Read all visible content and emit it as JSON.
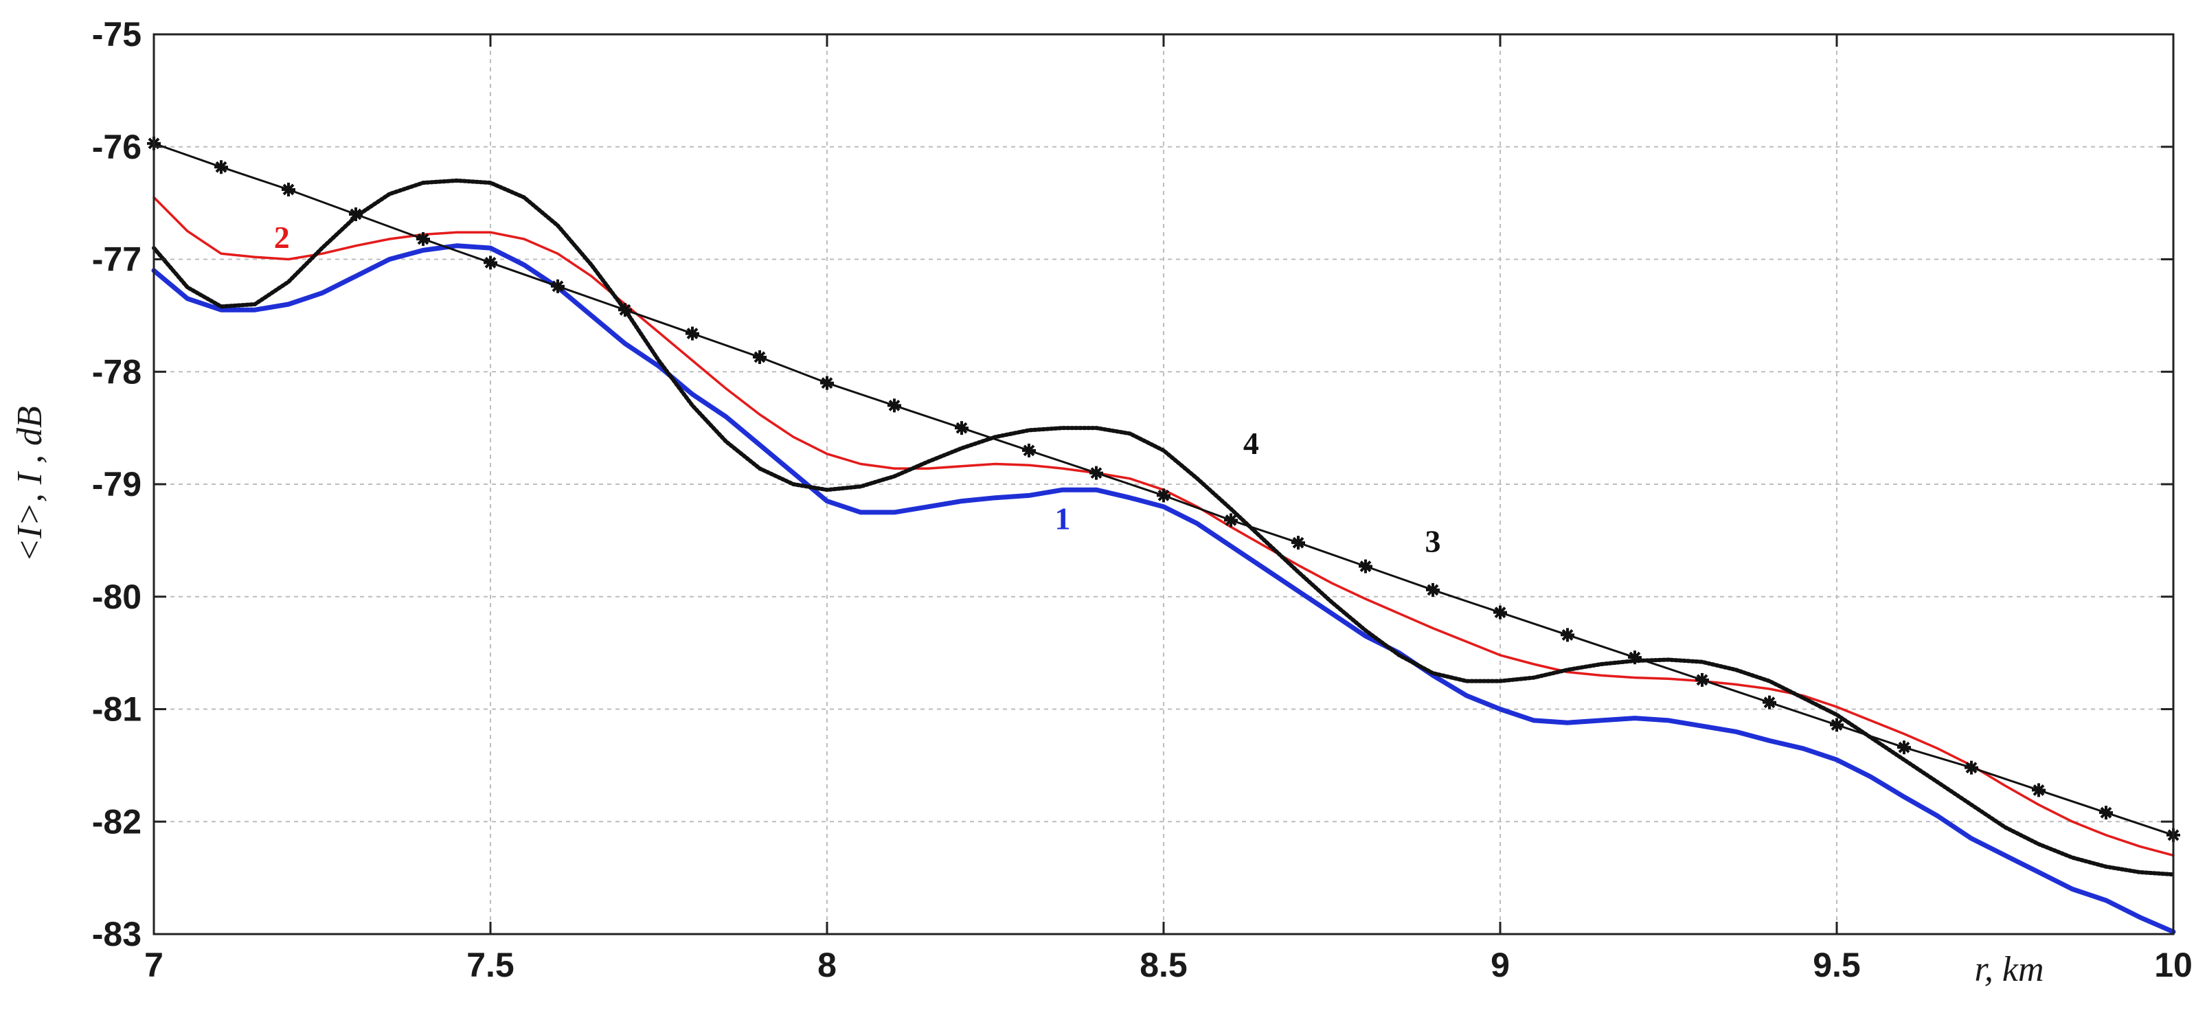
{
  "chart_data": {
    "type": "line",
    "xlabel": "r, km",
    "ylabel": "<I>, I , dB",
    "xlim": [
      7,
      10
    ],
    "ylim": [
      -83,
      -75
    ],
    "x_ticks": [
      "7",
      "7.5",
      "8",
      "8.5",
      "9",
      "9.5",
      "10"
    ],
    "y_ticks": [
      "-75",
      "-76",
      "-77",
      "-78",
      "-79",
      "-80",
      "-81",
      "-82",
      "-83"
    ],
    "grid": true,
    "colors": {
      "curve1": "#1f2fd6",
      "curve2": "#e41b1b",
      "curve3": "#111111",
      "curve4": "#111111"
    },
    "series": [
      {
        "name": "1",
        "x": [
          7.0,
          7.05,
          7.1,
          7.15,
          7.2,
          7.25,
          7.3,
          7.35,
          7.4,
          7.45,
          7.5,
          7.55,
          7.6,
          7.65,
          7.7,
          7.75,
          7.8,
          7.85,
          7.9,
          7.95,
          8.0,
          8.05,
          8.1,
          8.15,
          8.2,
          8.25,
          8.3,
          8.35,
          8.4,
          8.45,
          8.5,
          8.55,
          8.6,
          8.65,
          8.7,
          8.75,
          8.8,
          8.85,
          8.9,
          8.95,
          9.0,
          9.05,
          9.1,
          9.15,
          9.2,
          9.25,
          9.3,
          9.35,
          9.4,
          9.45,
          9.5,
          9.55,
          9.6,
          9.65,
          9.7,
          9.75,
          9.8,
          9.85,
          9.9,
          9.95,
          10.0
        ],
        "y": [
          -77.1,
          -77.35,
          -77.45,
          -77.45,
          -77.4,
          -77.3,
          -77.15,
          -77.0,
          -76.92,
          -76.88,
          -76.9,
          -77.05,
          -77.25,
          -77.5,
          -77.75,
          -77.95,
          -78.2,
          -78.4,
          -78.65,
          -78.9,
          -79.15,
          -79.25,
          -79.25,
          -79.2,
          -79.15,
          -79.12,
          -79.1,
          -79.05,
          -79.05,
          -79.12,
          -79.2,
          -79.35,
          -79.55,
          -79.75,
          -79.95,
          -80.15,
          -80.35,
          -80.5,
          -80.7,
          -80.88,
          -81.0,
          -81.1,
          -81.12,
          -81.1,
          -81.08,
          -81.1,
          -81.15,
          -81.2,
          -81.28,
          -81.35,
          -81.45,
          -81.6,
          -81.78,
          -81.95,
          -82.15,
          -82.3,
          -82.45,
          -82.6,
          -82.7,
          -82.85,
          -82.98
        ]
      },
      {
        "name": "2",
        "x": [
          7.0,
          7.05,
          7.1,
          7.15,
          7.2,
          7.25,
          7.3,
          7.35,
          7.4,
          7.45,
          7.5,
          7.55,
          7.6,
          7.65,
          7.7,
          7.75,
          7.8,
          7.85,
          7.9,
          7.95,
          8.0,
          8.05,
          8.1,
          8.15,
          8.2,
          8.25,
          8.3,
          8.35,
          8.4,
          8.45,
          8.5,
          8.55,
          8.6,
          8.65,
          8.7,
          8.75,
          8.8,
          8.85,
          8.9,
          8.95,
          9.0,
          9.05,
          9.1,
          9.15,
          9.2,
          9.25,
          9.3,
          9.35,
          9.4,
          9.45,
          9.5,
          9.55,
          9.6,
          9.65,
          9.7,
          9.75,
          9.8,
          9.85,
          9.9,
          9.95,
          10.0
        ],
        "y": [
          -76.45,
          -76.75,
          -76.95,
          -76.98,
          -77.0,
          -76.95,
          -76.88,
          -76.82,
          -76.78,
          -76.76,
          -76.76,
          -76.82,
          -76.95,
          -77.15,
          -77.4,
          -77.65,
          -77.9,
          -78.15,
          -78.38,
          -78.58,
          -78.73,
          -78.82,
          -78.86,
          -78.86,
          -78.84,
          -78.82,
          -78.83,
          -78.86,
          -78.9,
          -78.95,
          -79.05,
          -79.2,
          -79.38,
          -79.55,
          -79.72,
          -79.88,
          -80.02,
          -80.15,
          -80.28,
          -80.4,
          -80.52,
          -80.6,
          -80.67,
          -80.7,
          -80.72,
          -80.73,
          -80.75,
          -80.78,
          -80.82,
          -80.88,
          -80.98,
          -81.1,
          -81.22,
          -81.35,
          -81.5,
          -81.68,
          -81.85,
          -82.0,
          -82.12,
          -82.22,
          -82.3
        ]
      },
      {
        "name": "3",
        "x": [
          7.0,
          7.1,
          7.2,
          7.3,
          7.4,
          7.5,
          7.6,
          7.7,
          7.8,
          7.9,
          8.0,
          8.1,
          8.2,
          8.3,
          8.4,
          8.5,
          8.6,
          8.7,
          8.8,
          8.9,
          9.0,
          9.1,
          9.2,
          9.3,
          9.4,
          9.5,
          9.6,
          9.7,
          9.8,
          9.9,
          10.0
        ],
        "y": [
          -75.97,
          -76.18,
          -76.38,
          -76.6,
          -76.82,
          -77.03,
          -77.24,
          -77.45,
          -77.66,
          -77.87,
          -78.1,
          -78.3,
          -78.5,
          -78.7,
          -78.9,
          -79.1,
          -79.32,
          -79.52,
          -79.73,
          -79.94,
          -80.14,
          -80.34,
          -80.54,
          -80.74,
          -80.94,
          -81.14,
          -81.34,
          -81.52,
          -81.72,
          -81.92,
          -82.12
        ]
      },
      {
        "name": "4",
        "x": [
          7.0,
          7.05,
          7.1,
          7.15,
          7.2,
          7.25,
          7.3,
          7.35,
          7.4,
          7.45,
          7.5,
          7.55,
          7.6,
          7.65,
          7.7,
          7.75,
          7.8,
          7.85,
          7.9,
          7.95,
          8.0,
          8.05,
          8.1,
          8.15,
          8.2,
          8.25,
          8.3,
          8.35,
          8.4,
          8.45,
          8.5,
          8.55,
          8.6,
          8.65,
          8.7,
          8.75,
          8.8,
          8.85,
          8.9,
          8.95,
          9.0,
          9.05,
          9.1,
          9.15,
          9.2,
          9.25,
          9.3,
          9.35,
          9.4,
          9.45,
          9.5,
          9.55,
          9.6,
          9.65,
          9.7,
          9.75,
          9.8,
          9.85,
          9.9,
          9.95,
          10.0
        ],
        "y": [
          -76.9,
          -77.25,
          -77.42,
          -77.4,
          -77.2,
          -76.9,
          -76.62,
          -76.42,
          -76.32,
          -76.3,
          -76.32,
          -76.45,
          -76.7,
          -77.05,
          -77.45,
          -77.9,
          -78.3,
          -78.62,
          -78.86,
          -79.0,
          -79.05,
          -79.02,
          -78.93,
          -78.8,
          -78.68,
          -78.58,
          -78.52,
          -78.5,
          -78.5,
          -78.55,
          -78.7,
          -78.95,
          -79.22,
          -79.5,
          -79.78,
          -80.05,
          -80.3,
          -80.52,
          -80.68,
          -80.75,
          -80.75,
          -80.72,
          -80.65,
          -80.6,
          -80.57,
          -80.56,
          -80.58,
          -80.65,
          -80.75,
          -80.9,
          -81.05,
          -81.25,
          -81.45,
          -81.65,
          -81.85,
          -82.05,
          -82.2,
          -82.32,
          -82.4,
          -82.45,
          -82.47
        ]
      }
    ],
    "curve_labels": [
      {
        "series": "2",
        "text": "2",
        "x": 7.19,
        "y": -76.9
      },
      {
        "series": "1",
        "text": "1",
        "x": 8.35,
        "y": -79.4
      },
      {
        "series": "4",
        "text": "4",
        "x": 8.63,
        "y": -78.73
      },
      {
        "series": "3",
        "text": "3",
        "x": 8.9,
        "y": -79.6
      }
    ]
  }
}
